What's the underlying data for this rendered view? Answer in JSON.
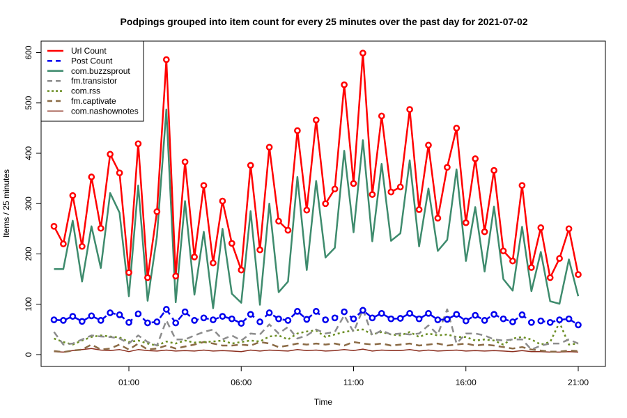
{
  "chart_data": {
    "type": "line",
    "title": "Podpings grouped into item count for every 25 minutes  over the past day for 2021-07-02",
    "xlabel": "Time",
    "ylabel": "Items / 25 minutes",
    "ylim": [
      0,
      620
    ],
    "yticks": [
      0,
      100,
      200,
      300,
      400,
      500,
      600
    ],
    "xticks": [
      {
        "hour": 1,
        "label": "01:00"
      },
      {
        "hour": 6,
        "label": "06:00"
      },
      {
        "hour": 11,
        "label": "11:00"
      },
      {
        "hour": 16,
        "label": "16:00"
      },
      {
        "hour": 21,
        "label": "21:00"
      }
    ],
    "x_start_hour": -2.3333,
    "x_step_hours": 0.41667,
    "legend_position": "top-left",
    "grid": false,
    "series": [
      {
        "name": "Url Count",
        "color": "#ff0000",
        "dash": "solid",
        "width": 2.5,
        "markers": true,
        "values": [
          255,
          220,
          316,
          215,
          353,
          251,
          398,
          361,
          163,
          419,
          153,
          284,
          586,
          156,
          383,
          194,
          336,
          182,
          305,
          221,
          168,
          376,
          208,
          412,
          265,
          247,
          445,
          287,
          466,
          300,
          329,
          536,
          340,
          599,
          318,
          474,
          323,
          333,
          487,
          288,
          416,
          271,
          372,
          450,
          262,
          389,
          244,
          366,
          206,
          186,
          336,
          173,
          252,
          153,
          191,
          250,
          159
        ]
      },
      {
        "name": "Post Count",
        "color": "#0000ee",
        "dash": "dashed",
        "width": 2.5,
        "markers": true,
        "values": [
          69,
          68,
          76,
          66,
          77,
          68,
          83,
          79,
          64,
          81,
          63,
          65,
          90,
          63,
          85,
          68,
          73,
          69,
          76,
          71,
          62,
          80,
          65,
          83,
          71,
          68,
          86,
          70,
          86,
          69,
          73,
          85,
          71,
          88,
          73,
          82,
          71,
          72,
          82,
          71,
          82,
          69,
          70,
          80,
          67,
          78,
          68,
          80,
          71,
          65,
          79,
          64,
          67,
          64,
          69,
          71,
          59
        ]
      },
      {
        "name": "com.buzzsprout",
        "color": "#3e8b6d",
        "dash": "solid",
        "width": 2.5,
        "markers": false,
        "values": [
          170,
          170,
          266,
          145,
          255,
          172,
          321,
          282,
          116,
          336,
          107,
          235,
          487,
          104,
          305,
          119,
          244,
          92,
          250,
          121,
          103,
          285,
          99,
          300,
          124,
          145,
          353,
          168,
          345,
          193,
          212,
          405,
          243,
          426,
          225,
          379,
          226,
          241,
          386,
          215,
          330,
          206,
          228,
          368,
          186,
          293,
          165,
          294,
          150,
          127,
          254,
          126,
          204,
          106,
          101,
          189,
          116
        ]
      },
      {
        "name": "fm.transistor",
        "color": "#8c8c8c",
        "dash": "dashed",
        "width": 2.5,
        "markers": false,
        "values": [
          45,
          20,
          22,
          30,
          38,
          36,
          35,
          32,
          22,
          38,
          25,
          18,
          68,
          30,
          30,
          38,
          45,
          50,
          30,
          38,
          28,
          42,
          40,
          60,
          42,
          55,
          32,
          38,
          50,
          42,
          45,
          78,
          45,
          90,
          38,
          48,
          40,
          42,
          40,
          42,
          58,
          40,
          90,
          22,
          42,
          42,
          38,
          30,
          28,
          30,
          30,
          10,
          18,
          22,
          22,
          30,
          22
        ]
      },
      {
        "name": "com.rss",
        "color": "#6b8e23",
        "dash": "dotted",
        "width": 2.5,
        "markers": false,
        "values": [
          32,
          25,
          20,
          28,
          35,
          38,
          36,
          34,
          25,
          28,
          22,
          18,
          26,
          22,
          28,
          24,
          25,
          26,
          28,
          22,
          25,
          28,
          26,
          36,
          38,
          30,
          42,
          46,
          48,
          35,
          40,
          45,
          48,
          50,
          40,
          45,
          40,
          38,
          45,
          35,
          42,
          38,
          40,
          35,
          35,
          28,
          30,
          28,
          20,
          32,
          35,
          30,
          20,
          25,
          64,
          20,
          22
        ]
      },
      {
        "name": "fm.captivate",
        "color": "#8b6b46",
        "dash": "dashed",
        "width": 2.5,
        "markers": false,
        "values": [
          7,
          5,
          8,
          10,
          20,
          10,
          12,
          20,
          10,
          22,
          10,
          12,
          18,
          12,
          16,
          20,
          25,
          22,
          18,
          18,
          20,
          18,
          25,
          22,
          15,
          18,
          22,
          20,
          22,
          20,
          22,
          18,
          25,
          22,
          20,
          22,
          18,
          20,
          22,
          18,
          20,
          22,
          18,
          20,
          22,
          18,
          20,
          18,
          15,
          12,
          15,
          10,
          8,
          6,
          6,
          8,
          7
        ]
      },
      {
        "name": "com.nashownotes",
        "color": "#8b2e1e",
        "dash": "solid",
        "width": 1.5,
        "markers": false,
        "values": [
          6,
          5,
          8,
          10,
          12,
          9,
          8,
          10,
          6,
          10,
          8,
          7,
          9,
          7,
          8,
          7,
          9,
          7,
          8,
          7,
          6,
          9,
          7,
          9,
          8,
          7,
          10,
          8,
          9,
          7,
          8,
          10,
          8,
          11,
          7,
          9,
          8,
          8,
          10,
          7,
          9,
          7,
          8,
          9,
          7,
          8,
          7,
          8,
          7,
          6,
          8,
          6,
          6,
          5,
          5,
          6,
          5
        ]
      }
    ]
  }
}
